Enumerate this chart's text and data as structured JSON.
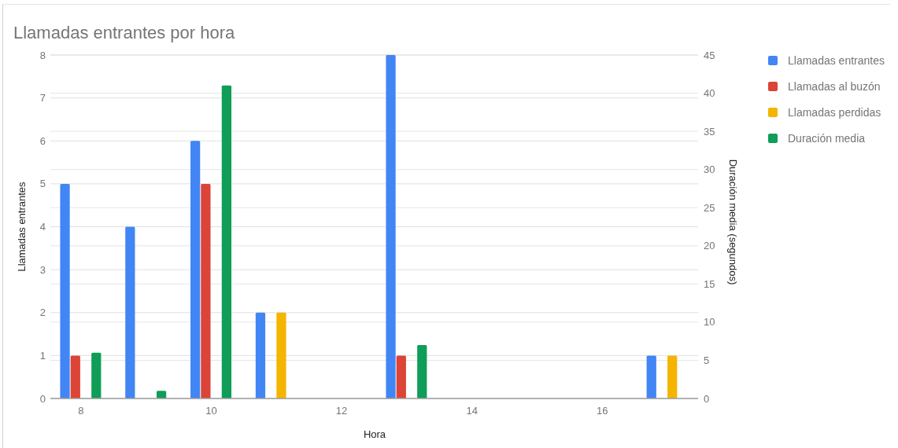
{
  "chart_data": {
    "type": "bar",
    "title": "Llamadas entrantes por hora",
    "xlabel": "Hora",
    "ylabel": "Llamadas entrantes",
    "y2label": "Duración media (segundos)",
    "x": [
      8,
      9,
      10,
      11,
      13,
      17
    ],
    "xlim": [
      7.53,
      17.47
    ],
    "xticks": [
      8,
      10,
      12,
      14,
      16
    ],
    "ylim": [
      0,
      8
    ],
    "yticks": [
      0,
      1,
      2,
      3,
      4,
      5,
      6,
      7,
      8
    ],
    "y2lim": [
      0,
      45
    ],
    "y2ticks": [
      0,
      5,
      10,
      15,
      20,
      25,
      30,
      35,
      40,
      45
    ],
    "grid": true,
    "legend": "right",
    "series": [
      {
        "name": "Llamadas entrantes",
        "color": "#4285f4",
        "values": [
          5,
          4,
          6,
          2,
          8,
          1
        ]
      },
      {
        "name": "Llamadas al buzón",
        "color": "#db4437",
        "values": [
          1,
          null,
          5,
          null,
          1,
          null
        ]
      },
      {
        "name": "Llamadas perdidas",
        "color": "#f4b400",
        "values": [
          null,
          null,
          null,
          2,
          null,
          1
        ]
      },
      {
        "name": "Duración media",
        "color": "#0f9d58",
        "axis": "y2",
        "values": [
          6,
          1,
          41,
          null,
          7,
          null
        ]
      }
    ]
  }
}
